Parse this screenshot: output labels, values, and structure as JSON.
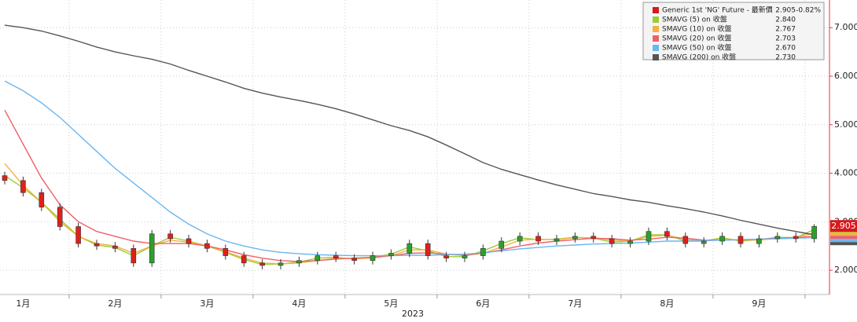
{
  "chart_data": {
    "type": "candlestick",
    "xlabel": "2023",
    "categories": [
      null,
      "1月",
      null,
      null,
      null,
      null,
      "2月",
      null,
      null,
      null,
      null,
      "3月",
      null,
      null,
      null,
      null,
      "4月",
      null,
      null,
      null,
      null,
      "5月",
      null,
      null,
      null,
      null,
      "6月",
      null,
      null,
      null,
      null,
      "7月",
      null,
      null,
      null,
      null,
      "8月",
      null,
      null,
      null,
      null,
      "9月",
      null,
      null,
      null
    ],
    "ylim": [
      1.5,
      7.57
    ],
    "yticks": [
      {
        "value": 2,
        "label": "2.000"
      },
      {
        "value": 3,
        "label": "3.000"
      },
      {
        "value": 4,
        "label": "4.000"
      },
      {
        "value": 5,
        "label": "5.000"
      },
      {
        "value": 6,
        "label": "6.000"
      },
      {
        "value": 7,
        "label": "7.000"
      }
    ],
    "grid": true,
    "candles": {
      "name": "Generic 1st 'NG' Future - 最新價",
      "color": "#d7191c",
      "up_color": "#2ca02c",
      "down_color": "#e0201b",
      "last_label": "2.905",
      "change_label": "-0.82%",
      "open": [
        3.95,
        3.85,
        3.6,
        3.3,
        2.9,
        2.55,
        2.5,
        2.45,
        2.15,
        2.75,
        2.65,
        2.55,
        2.45,
        2.3,
        2.15,
        2.1,
        2.15,
        2.2,
        2.3,
        2.25,
        2.2,
        2.3,
        2.35,
        2.55,
        2.3,
        2.25,
        2.3,
        2.45,
        2.6,
        2.7,
        2.6,
        2.65,
        2.7,
        2.65,
        2.55,
        2.6,
        2.8,
        2.7,
        2.55,
        2.6,
        2.7,
        2.55,
        2.65,
        2.7,
        2.65
      ],
      "high": [
        4.03,
        3.93,
        3.68,
        3.38,
        2.98,
        2.63,
        2.58,
        2.53,
        2.83,
        2.83,
        2.73,
        2.63,
        2.53,
        2.38,
        2.23,
        2.23,
        2.28,
        2.38,
        2.38,
        2.33,
        2.38,
        2.43,
        2.63,
        2.63,
        2.38,
        2.38,
        2.53,
        2.68,
        2.78,
        2.78,
        2.73,
        2.78,
        2.78,
        2.73,
        2.68,
        2.88,
        2.88,
        2.78,
        2.68,
        2.78,
        2.78,
        2.73,
        2.78,
        2.78,
        2.95
      ],
      "low": [
        3.77,
        3.52,
        3.22,
        2.82,
        2.47,
        2.42,
        2.37,
        2.07,
        2.07,
        2.57,
        2.47,
        2.37,
        2.22,
        2.07,
        2.02,
        2.02,
        2.07,
        2.12,
        2.17,
        2.12,
        2.12,
        2.22,
        2.27,
        2.22,
        2.17,
        2.17,
        2.22,
        2.37,
        2.52,
        2.52,
        2.52,
        2.57,
        2.57,
        2.47,
        2.47,
        2.52,
        2.62,
        2.47,
        2.47,
        2.52,
        2.47,
        2.47,
        2.57,
        2.57,
        2.57
      ],
      "close": [
        3.85,
        3.6,
        3.3,
        2.9,
        2.55,
        2.5,
        2.45,
        2.15,
        2.75,
        2.65,
        2.55,
        2.45,
        2.3,
        2.15,
        2.1,
        2.15,
        2.2,
        2.3,
        2.25,
        2.2,
        2.3,
        2.35,
        2.55,
        2.3,
        2.25,
        2.3,
        2.45,
        2.6,
        2.7,
        2.6,
        2.65,
        2.7,
        2.65,
        2.55,
        2.6,
        2.8,
        2.7,
        2.55,
        2.6,
        2.7,
        2.55,
        2.65,
        2.7,
        2.65,
        2.905
      ]
    },
    "series": [
      {
        "name": "SMAVG (5)  on 收盤",
        "color": "#9acd32",
        "last_label": "2.840",
        "values": [
          3.95,
          3.7,
          3.4,
          3.05,
          2.7,
          2.52,
          2.47,
          2.3,
          2.5,
          2.68,
          2.6,
          2.5,
          2.37,
          2.22,
          2.12,
          2.13,
          2.17,
          2.25,
          2.27,
          2.23,
          2.27,
          2.33,
          2.48,
          2.4,
          2.28,
          2.28,
          2.4,
          2.55,
          2.67,
          2.63,
          2.64,
          2.68,
          2.66,
          2.58,
          2.6,
          2.73,
          2.73,
          2.6,
          2.6,
          2.67,
          2.6,
          2.63,
          2.68,
          2.67,
          2.84
        ]
      },
      {
        "name": "SMAVG (10)  on 收盤",
        "color": "#f5b041",
        "last_label": "2.767",
        "values": [
          4.2,
          3.75,
          3.4,
          3.0,
          2.7,
          2.55,
          2.5,
          2.35,
          2.5,
          2.62,
          2.58,
          2.5,
          2.38,
          2.25,
          2.15,
          2.13,
          2.15,
          2.2,
          2.25,
          2.24,
          2.25,
          2.3,
          2.42,
          2.42,
          2.33,
          2.3,
          2.35,
          2.48,
          2.62,
          2.64,
          2.63,
          2.67,
          2.67,
          2.62,
          2.6,
          2.7,
          2.72,
          2.64,
          2.6,
          2.64,
          2.62,
          2.62,
          2.66,
          2.68,
          2.767
        ]
      },
      {
        "name": "SMAVG (20)  on 收盤",
        "color": "#f0606a",
        "last_label": "2.703",
        "values": [
          5.3,
          4.6,
          3.9,
          3.35,
          3.0,
          2.8,
          2.7,
          2.6,
          2.55,
          2.55,
          2.55,
          2.5,
          2.42,
          2.32,
          2.25,
          2.2,
          2.18,
          2.2,
          2.23,
          2.25,
          2.27,
          2.3,
          2.35,
          2.36,
          2.33,
          2.32,
          2.35,
          2.42,
          2.5,
          2.56,
          2.6,
          2.63,
          2.66,
          2.65,
          2.62,
          2.64,
          2.68,
          2.66,
          2.62,
          2.62,
          2.63,
          2.64,
          2.66,
          2.67,
          2.703
        ]
      },
      {
        "name": "SMAVG (50)  on 收盤",
        "color": "#6ab7f0",
        "last_label": "2.670",
        "values": [
          5.9,
          5.7,
          5.45,
          5.15,
          4.8,
          4.45,
          4.1,
          3.8,
          3.5,
          3.2,
          2.95,
          2.75,
          2.6,
          2.5,
          2.42,
          2.37,
          2.34,
          2.32,
          2.31,
          2.3,
          2.3,
          2.3,
          2.31,
          2.31,
          2.32,
          2.33,
          2.36,
          2.4,
          2.44,
          2.47,
          2.5,
          2.52,
          2.54,
          2.55,
          2.56,
          2.58,
          2.6,
          2.6,
          2.61,
          2.62,
          2.63,
          2.64,
          2.65,
          2.66,
          2.67
        ]
      },
      {
        "name": "SMAVG (200)  on 收盤",
        "color": "#555555",
        "last_label": "2.730",
        "values": [
          7.05,
          7.0,
          6.93,
          6.83,
          6.72,
          6.6,
          6.5,
          6.42,
          6.35,
          6.25,
          6.12,
          6.0,
          5.88,
          5.75,
          5.65,
          5.57,
          5.5,
          5.42,
          5.33,
          5.22,
          5.1,
          4.98,
          4.88,
          4.75,
          4.58,
          4.4,
          4.22,
          4.08,
          3.97,
          3.86,
          3.76,
          3.67,
          3.58,
          3.52,
          3.45,
          3.4,
          3.33,
          3.27,
          3.2,
          3.12,
          3.03,
          2.95,
          2.87,
          2.8,
          2.73
        ]
      }
    ]
  }
}
